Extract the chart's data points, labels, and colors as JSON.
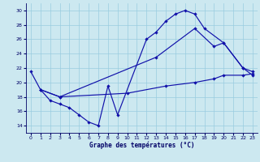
{
  "xlabel": "Graphe des températures (°C)",
  "xlim": [
    -0.5,
    23.5
  ],
  "ylim": [
    13.0,
    31.0
  ],
  "yticks": [
    14,
    16,
    18,
    20,
    22,
    24,
    26,
    28,
    30
  ],
  "xticks": [
    0,
    1,
    2,
    3,
    4,
    5,
    6,
    7,
    8,
    9,
    10,
    11,
    12,
    13,
    14,
    15,
    16,
    17,
    18,
    19,
    20,
    21,
    22,
    23
  ],
  "bg": "#cce8f0",
  "grid_color": "#99cce0",
  "lc": "#1111aa",
  "curve1_x": [
    0,
    1,
    2,
    3,
    4,
    5,
    6,
    7,
    8,
    9,
    12,
    13,
    14,
    15,
    16,
    17,
    18,
    20,
    22,
    23
  ],
  "curve1_y": [
    21.5,
    19.0,
    17.5,
    17.0,
    16.5,
    15.5,
    14.5,
    14.0,
    19.5,
    15.5,
    26.0,
    27.0,
    28.5,
    29.5,
    30.0,
    29.5,
    27.5,
    25.5,
    22.0,
    21.0
  ],
  "curve2_x": [
    1,
    3,
    13,
    17,
    19,
    20,
    22,
    23
  ],
  "curve2_y": [
    19.0,
    18.0,
    23.5,
    27.5,
    25.0,
    25.5,
    22.0,
    21.5
  ],
  "curve3_x": [
    1,
    3,
    10,
    14,
    17,
    19,
    20,
    22,
    23
  ],
  "curve3_y": [
    19.0,
    18.0,
    18.5,
    19.5,
    20.0,
    20.5,
    21.0,
    21.0,
    21.2
  ]
}
